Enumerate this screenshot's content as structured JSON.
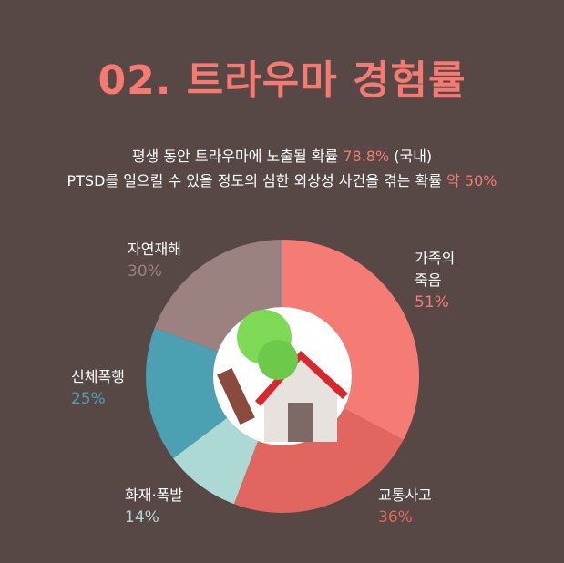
{
  "chart_data": {
    "type": "donut",
    "title": "02. 트라우마 경험률",
    "subtitle": [
      [
        "평생 동안 트라우마에 노출될 확률 ",
        "78.8%",
        " (국내)"
      ],
      [
        "PTSD를 일으킬 수 있을 정도의 심한 외상성 사건을 겪는 확률 ",
        "약 50%"
      ]
    ],
    "categories": [
      "가족의\n죽음",
      "교통사고",
      "화재·폭발",
      "신체폭행",
      "자연재해"
    ],
    "values": [
      51,
      36,
      14,
      25,
      30
    ],
    "value_labels": [
      "51%",
      "36%",
      "14%",
      "25%",
      "30%"
    ],
    "colors": [
      "#f47c75",
      "#e0665f",
      "#acd9d4",
      "#4ba0b2",
      "#9b8280"
    ]
  }
}
